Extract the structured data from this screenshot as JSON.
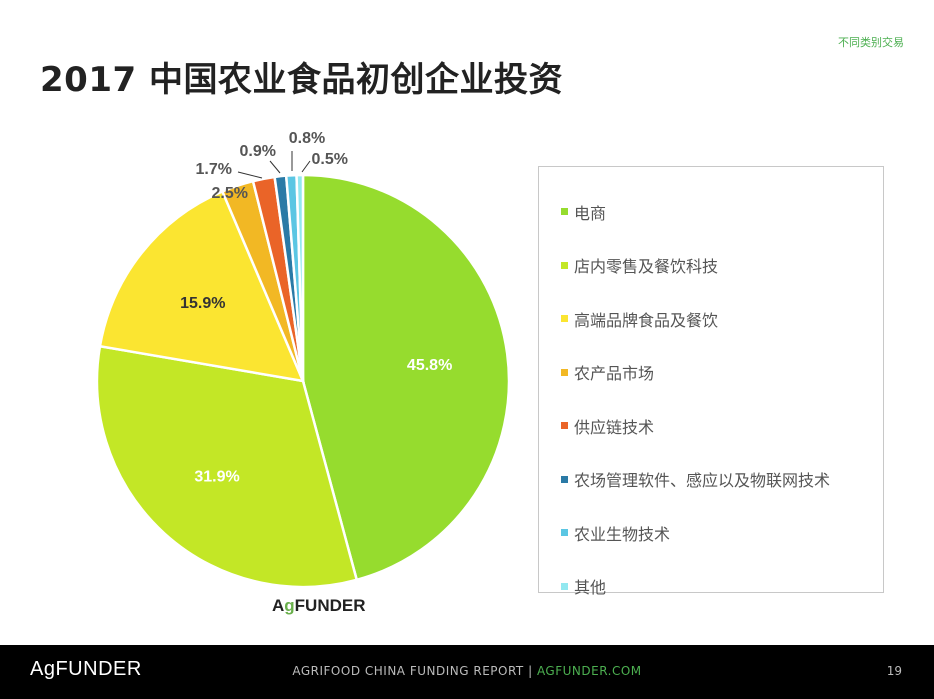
{
  "header": {
    "tag": "不同类别交易",
    "title": "2017 中国农业食品初创企业投资"
  },
  "chart_data": {
    "type": "pie",
    "title": "2017 中国农业食品初创企业投资",
    "legend_position": "right",
    "slices": [
      {
        "name": "电商",
        "value": 45.8,
        "label": "45.8%",
        "color": "#96dc2e"
      },
      {
        "name": "店内零售及餐饮科技",
        "value": 31.9,
        "label": "31.9%",
        "color": "#c3e726"
      },
      {
        "name": "高端品牌食品及餐饮",
        "value": 15.9,
        "label": "15.9%",
        "color": "#fbe531"
      },
      {
        "name": "农产品市场",
        "value": 2.5,
        "label": "2.5%",
        "color": "#f2b824"
      },
      {
        "name": "供应链技术",
        "value": 1.7,
        "label": "1.7%",
        "color": "#ea6428"
      },
      {
        "name": "农场管理软件、感应以及物联网技术",
        "value": 0.9,
        "label": "0.9%",
        "color": "#2a7aa6"
      },
      {
        "name": "农业生物技术",
        "value": 0.8,
        "label": "0.8%",
        "color": "#5bc6e3"
      },
      {
        "name": "其他",
        "value": 0.5,
        "label": "0.5%",
        "color": "#92e8f0"
      }
    ]
  },
  "watermark": {
    "logo_a": "A",
    "logo_g": "g",
    "logo_rest": "FUNDER"
  },
  "footer": {
    "logo": "AgFUNDER",
    "report": "AGRIFOOD CHINA FUNDING REPORT |",
    "site": "AGFUNDER.COM",
    "page": "19"
  }
}
